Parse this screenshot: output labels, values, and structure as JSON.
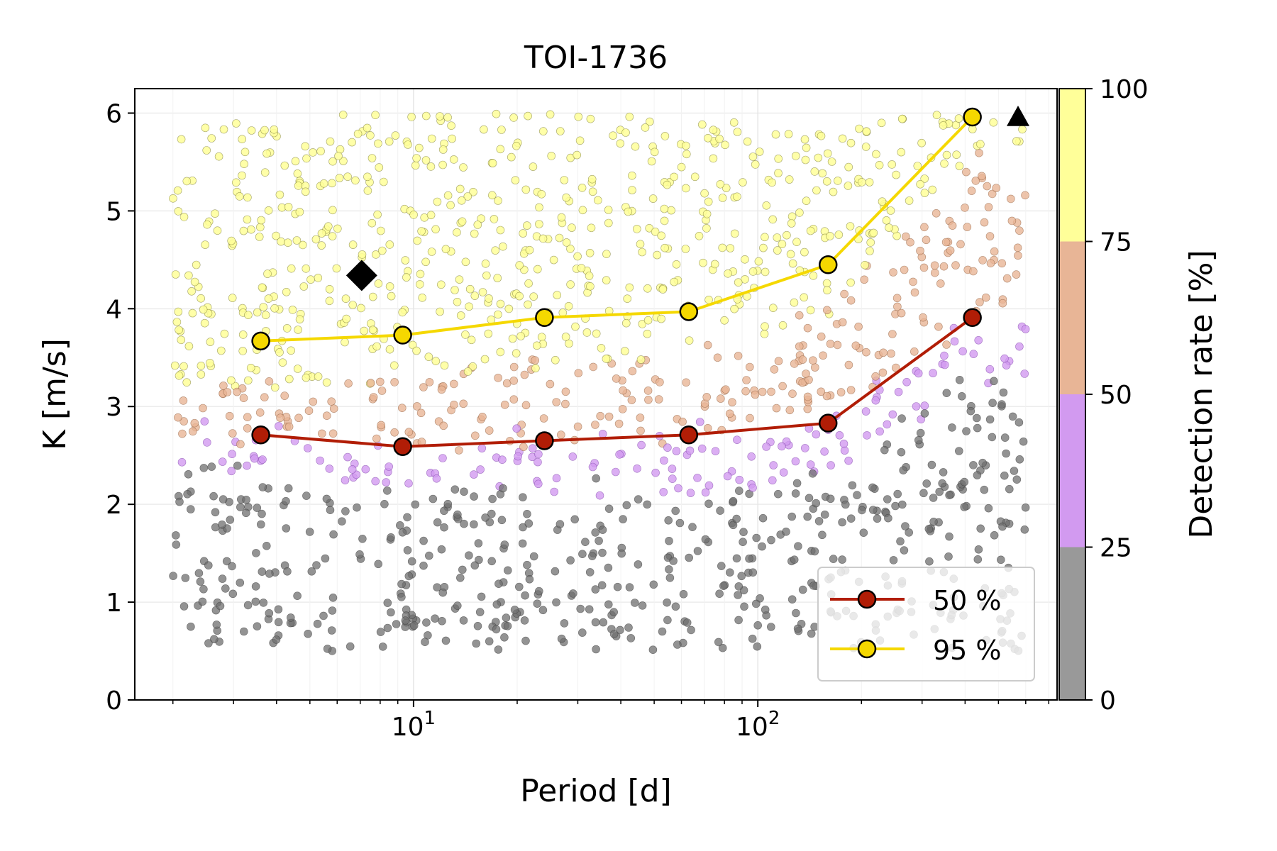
{
  "chart_data": {
    "type": "scatter",
    "title": "TOI-1736",
    "xlabel": "Period [d]",
    "ylabel": "K [m/s]",
    "xscale": "log",
    "xlim": [
      1.55,
      740
    ],
    "ylim": [
      0,
      6.25
    ],
    "y_ticks": [
      "0",
      "1",
      "2",
      "3",
      "4",
      "5",
      "6"
    ],
    "x_tick_labels": [
      {
        "value": 10,
        "base": "10",
        "exp": "1"
      },
      {
        "value": 100,
        "base": "10",
        "exp": "2"
      }
    ],
    "grid": true,
    "colorbar": {
      "label": "Detection rate [%]",
      "ticks": [
        "0",
        "25",
        "50",
        "75",
        "100"
      ],
      "bins": [
        {
          "range": [
            0,
            25
          ],
          "color": "#999999"
        },
        {
          "range": [
            25,
            50
          ],
          "color": "#d29af0"
        },
        {
          "range": [
            50,
            75
          ],
          "color": "#e8b596"
        },
        {
          "range": [
            75,
            100
          ],
          "color": "#ffff99"
        }
      ]
    },
    "injection_points": {
      "n": 1600,
      "seed": 1736,
      "period_range": [
        2,
        600
      ],
      "k_range": [
        0.5,
        6.0
      ],
      "marker_color_by_detection_rate": true
    },
    "series": [
      {
        "name": "50 %",
        "color": "#b11d06",
        "marker_fill": "#b11d06",
        "x": [
          3.6,
          9.3,
          24,
          63,
          160,
          420
        ],
        "y": [
          2.71,
          2.59,
          2.65,
          2.71,
          2.83,
          3.91
        ]
      },
      {
        "name": "95 %",
        "color": "#f5d800",
        "marker_fill": "#f5d800",
        "x": [
          3.6,
          9.3,
          24,
          63,
          160,
          420
        ],
        "y": [
          3.67,
          3.73,
          3.91,
          3.97,
          4.45,
          5.96
        ]
      }
    ],
    "planets": [
      {
        "marker": "diamond",
        "period": 7.07,
        "k": 4.34,
        "color": "#000000"
      },
      {
        "marker": "triangle",
        "period": 570,
        "k": 5.96,
        "color": "#000000"
      }
    ],
    "legend": {
      "placement": "lower-right",
      "entries": [
        "50 %",
        "95 %"
      ]
    }
  }
}
